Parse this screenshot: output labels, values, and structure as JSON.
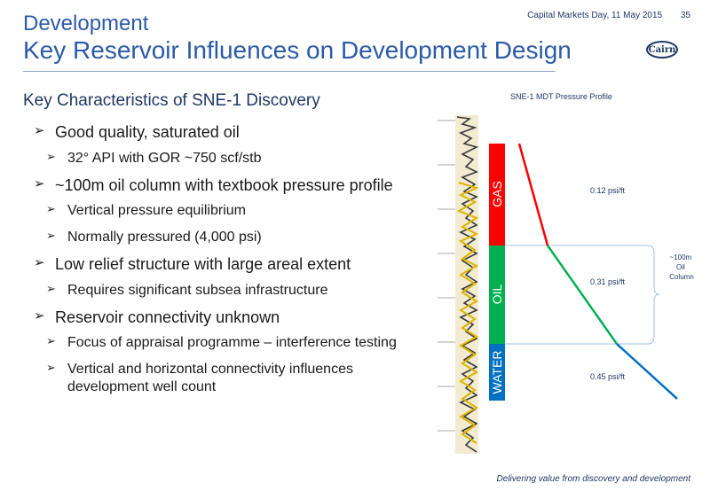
{
  "header": {
    "event": "Capital Markets Day, 11 May 2015",
    "page_number": "35",
    "section": "Development",
    "title": "Key Reservoir Influences on Development Design",
    "logo_text": "Cairn"
  },
  "content": {
    "heading": "Key Characteristics of SNE-1 Discovery",
    "items": [
      {
        "level": 1,
        "text": "Good quality, saturated oil"
      },
      {
        "level": 2,
        "text": "32° API with GOR ~750 scf/stb"
      },
      {
        "level": 1,
        "text": "~100m oil column with textbook pressure profile"
      },
      {
        "level": 2,
        "text": "Vertical pressure equilibrium"
      },
      {
        "level": 2,
        "text": "Normally pressured (4,000 psi)"
      },
      {
        "level": 1,
        "text": "Low relief structure with large areal extent"
      },
      {
        "level": 2,
        "text": "Requires significant subsea infrastructure"
      },
      {
        "level": 1,
        "text": "Reservoir connectivity unknown"
      },
      {
        "level": 2,
        "text": "Focus of appraisal programme – interference testing"
      },
      {
        "level": 2,
        "text": "Vertical and horizontal connectivity influences development well count"
      }
    ]
  },
  "chart_data": {
    "type": "line",
    "title": "SNE-1 MDT Pressure Profile",
    "zones": [
      {
        "name": "GAS",
        "color": "#ff0000"
      },
      {
        "name": "OIL",
        "color": "#00b050"
      },
      {
        "name": "WATER",
        "color": "#0070c0"
      }
    ],
    "gradients": [
      {
        "label": "0.12 psi/ft",
        "color": "#ff0000"
      },
      {
        "label": "0.31 psi/ft",
        "color": "#00b050"
      },
      {
        "label": "0.45 psi/ft",
        "color": "#0070c0"
      }
    ],
    "bracket_label": "~100m Oil Column"
  },
  "footer": {
    "tagline": "Delivering value from discovery and development"
  },
  "colors": {
    "title_blue": "#2b5aa8",
    "navy": "#1f3864",
    "gas": "#ff0000",
    "oil": "#00b050",
    "water": "#0070c0"
  }
}
